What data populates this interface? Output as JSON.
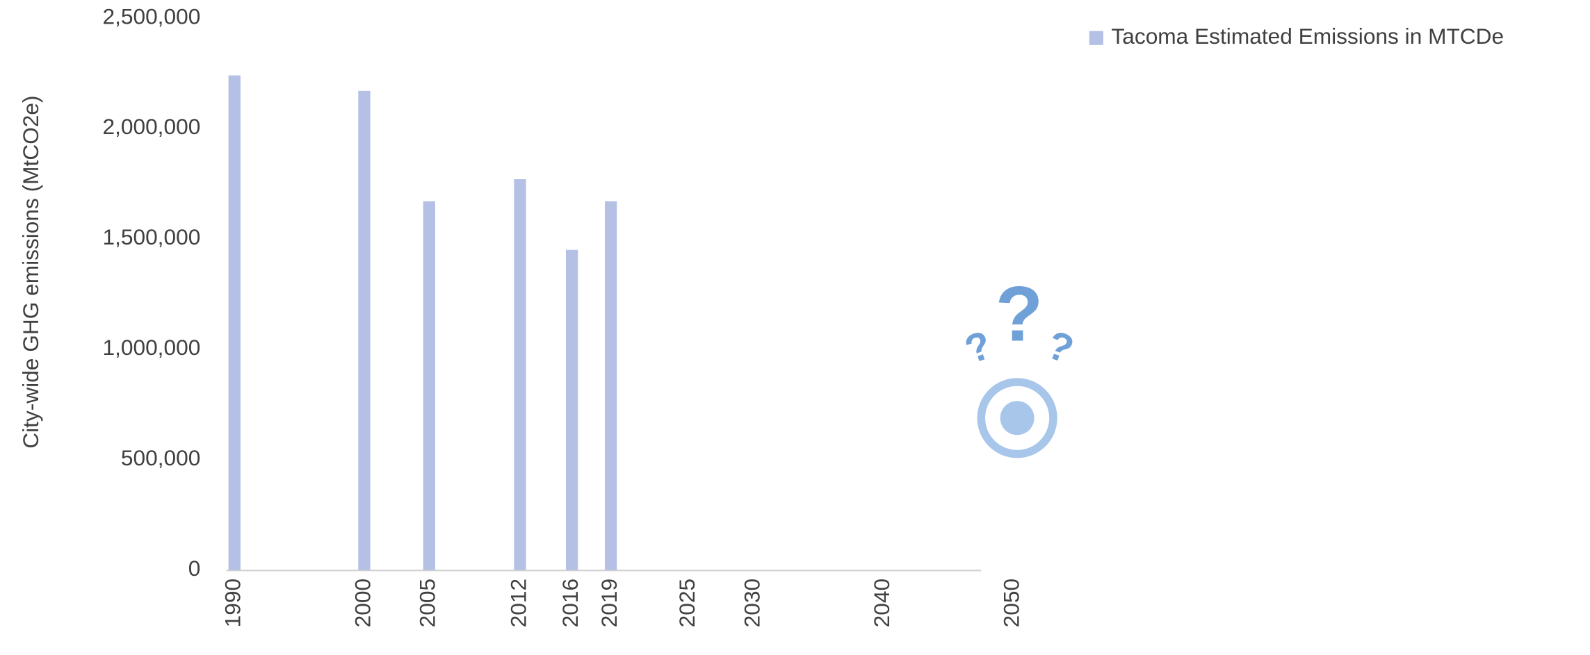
{
  "chart_data": {
    "type": "bar",
    "y_label": "City-wide GHG emissions (MtCO2e)",
    "x": [
      1990,
      2000,
      2005,
      2012,
      2016,
      2019,
      2025,
      2030,
      2040,
      2050
    ],
    "series": [
      {
        "name": "Tacoma Estimated Emissions in MTCDe",
        "color": "#b4c1e5",
        "values": [
          2240000,
          2170000,
          1670000,
          1770000,
          1450000,
          1670000,
          null,
          null,
          null,
          null
        ]
      }
    ],
    "xlim": [
      1990,
      2050
    ],
    "xticks": [
      1990,
      2000,
      2005,
      2012,
      2016,
      2019,
      2025,
      2030,
      2040,
      2050
    ],
    "ylim": [
      0,
      2500000
    ],
    "yticks": [
      0,
      {
        "value": 500000,
        "label": "500,000"
      },
      {
        "value": 1000000,
        "label": "1,000,000"
      },
      {
        "value": 1500000,
        "label": "1,500,000"
      },
      {
        "value": 2000000,
        "label": "2,000,000"
      },
      {
        "value": 2500000,
        "label": "2,500,000"
      }
    ],
    "legend": "top-right"
  }
}
